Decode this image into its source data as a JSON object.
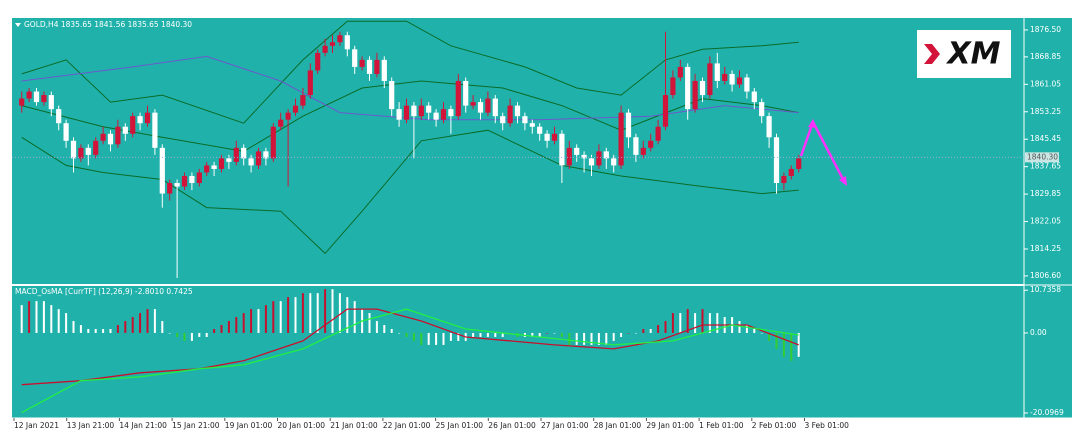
{
  "chart_data": [
    {
      "type": "candlestick",
      "title": "GOLD,H4  1835.65 1841.56 1835.65 1840.30",
      "logo": "XM",
      "up_color": "#d2143a",
      "down_color": "#ffffff",
      "ylim": [
        1804.3,
        1879.9
      ],
      "yticks": [
        {
          "value": 1876.5,
          "label": "1876.50"
        },
        1868.85,
        1861.05,
        1853.25,
        1845.45,
        1837.65,
        1829.85,
        1822.05,
        1814.25,
        {
          "value": 1806.6,
          "label": "1806.60"
        }
      ],
      "current_price": {
        "value": 1840.3,
        "label": "1840.30"
      },
      "categories": [
        "12 Jan 2021",
        "13 Jan 21:00",
        "14 Jan 21:00",
        "15 Jan 21:00",
        "19 Jan 01:00",
        "20 Jan 01:00",
        "21 Jan 01:00",
        "22 Jan 01:00",
        "25 Jan 01:00",
        "26 Jan 01:00",
        "27 Jan 01:00",
        "28 Jan 01:00",
        "29 Jan 01:00",
        "1 Feb 01:00",
        "2 Feb 01:00",
        "3 Feb 01:00"
      ],
      "candles": [
        [
          1855,
          1859,
          1853,
          1857
        ],
        [
          1857,
          1860,
          1856,
          1859
        ],
        [
          1859,
          1860,
          1855,
          1856
        ],
        [
          1856,
          1859,
          1855,
          1858
        ],
        [
          1858,
          1859,
          1852,
          1854
        ],
        [
          1854,
          1855,
          1848,
          1850
        ],
        [
          1850,
          1851,
          1843,
          1845
        ],
        [
          1845,
          1846,
          1836,
          1840
        ],
        [
          1840,
          1844,
          1839,
          1843
        ],
        [
          1843,
          1844,
          1838,
          1841
        ],
        [
          1841,
          1846,
          1840,
          1845
        ],
        [
          1845,
          1849,
          1844,
          1847
        ],
        [
          1847,
          1848,
          1842,
          1844
        ],
        [
          1844,
          1851,
          1843,
          1849
        ],
        [
          1849,
          1850,
          1845,
          1847
        ],
        [
          1847,
          1853,
          1846,
          1852
        ],
        [
          1852,
          1853,
          1848,
          1850
        ],
        [
          1850,
          1855,
          1849,
          1853
        ],
        [
          1853,
          1854,
          1841,
          1843
        ],
        [
          1843,
          1844,
          1826,
          1830
        ],
        [
          1830,
          1834,
          1828,
          1833
        ],
        [
          1833,
          1834,
          1806,
          1832
        ],
        [
          1832,
          1836,
          1831,
          1835
        ],
        [
          1835,
          1836,
          1831,
          1833
        ],
        [
          1833,
          1837,
          1832,
          1836
        ],
        [
          1836,
          1839,
          1835,
          1838
        ],
        [
          1838,
          1839,
          1835,
          1837
        ],
        [
          1837,
          1841,
          1836,
          1840
        ],
        [
          1840,
          1841,
          1837,
          1839
        ],
        [
          1839,
          1845,
          1838,
          1843
        ],
        [
          1843,
          1844,
          1838,
          1840
        ],
        [
          1840,
          1841,
          1836,
          1838
        ],
        [
          1838,
          1843,
          1837,
          1842
        ],
        [
          1842,
          1843,
          1838,
          1840
        ],
        [
          1840,
          1850,
          1839,
          1849
        ],
        [
          1849,
          1853,
          1848,
          1851
        ],
        [
          1851,
          1854,
          1832,
          1853
        ],
        [
          1853,
          1857,
          1852,
          1855
        ],
        [
          1855,
          1860,
          1854,
          1858
        ],
        [
          1858,
          1867,
          1857,
          1865
        ],
        [
          1865,
          1871,
          1864,
          1870
        ],
        [
          1870,
          1874,
          1869,
          1872
        ],
        [
          1872,
          1875,
          1870,
          1873
        ],
        [
          1873,
          1876,
          1872,
          1875
        ],
        [
          1875,
          1876,
          1869,
          1871
        ],
        [
          1871,
          1872,
          1864,
          1866
        ],
        [
          1866,
          1869,
          1865,
          1868
        ],
        [
          1868,
          1869,
          1862,
          1864
        ],
        [
          1864,
          1870,
          1863,
          1868
        ],
        [
          1868,
          1869,
          1860,
          1862
        ],
        [
          1862,
          1863,
          1852,
          1854
        ],
        [
          1854,
          1856,
          1849,
          1851
        ],
        [
          1851,
          1857,
          1850,
          1855
        ],
        [
          1855,
          1856,
          1840,
          1852
        ],
        [
          1852,
          1857,
          1851,
          1855
        ],
        [
          1855,
          1856,
          1851,
          1853
        ],
        [
          1853,
          1854,
          1849,
          1851
        ],
        [
          1851,
          1856,
          1850,
          1854
        ],
        [
          1854,
          1855,
          1847,
          1852
        ],
        [
          1852,
          1864,
          1851,
          1862
        ],
        [
          1862,
          1863,
          1853,
          1855
        ],
        [
          1855,
          1858,
          1854,
          1856
        ],
        [
          1856,
          1857,
          1851,
          1853
        ],
        [
          1853,
          1859,
          1852,
          1857
        ],
        [
          1857,
          1858,
          1850,
          1852
        ],
        [
          1852,
          1853,
          1848,
          1850
        ],
        [
          1850,
          1857,
          1849,
          1855
        ],
        [
          1855,
          1856,
          1850,
          1852
        ],
        [
          1852,
          1853,
          1848,
          1850
        ],
        [
          1850,
          1851,
          1847,
          1849
        ],
        [
          1849,
          1850,
          1845,
          1847
        ],
        [
          1847,
          1848,
          1843,
          1845
        ],
        [
          1845,
          1849,
          1844,
          1847
        ],
        [
          1847,
          1848,
          1833,
          1838
        ],
        [
          1838,
          1845,
          1837,
          1843
        ],
        [
          1843,
          1844,
          1839,
          1841
        ],
        [
          1841,
          1842,
          1836,
          1840
        ],
        [
          1840,
          1841,
          1835,
          1838
        ],
        [
          1838,
          1844,
          1837,
          1842
        ],
        [
          1842,
          1843,
          1837,
          1840
        ],
        [
          1840,
          1841,
          1836,
          1838
        ],
        [
          1838,
          1855,
          1837,
          1853
        ],
        [
          1853,
          1854,
          1843,
          1846
        ],
        [
          1846,
          1847,
          1839,
          1841
        ],
        [
          1841,
          1845,
          1840,
          1843
        ],
        [
          1843,
          1847,
          1842,
          1845
        ],
        [
          1845,
          1851,
          1844,
          1849
        ],
        [
          1849,
          1876,
          1848,
          1858
        ],
        [
          1858,
          1865,
          1857,
          1863
        ],
        [
          1863,
          1868,
          1862,
          1866
        ],
        [
          1866,
          1867,
          1851,
          1854
        ],
        [
          1854,
          1864,
          1853,
          1862
        ],
        [
          1862,
          1863,
          1856,
          1858
        ],
        [
          1858,
          1869,
          1857,
          1867
        ],
        [
          1867,
          1870,
          1860,
          1862
        ],
        [
          1862,
          1866,
          1861,
          1864
        ],
        [
          1864,
          1865,
          1859,
          1861
        ],
        [
          1861,
          1865,
          1860,
          1863
        ],
        [
          1863,
          1864,
          1857,
          1859
        ],
        [
          1859,
          1860,
          1854,
          1856
        ],
        [
          1856,
          1857,
          1850,
          1852
        ],
        [
          1852,
          1853,
          1843,
          1846
        ],
        [
          1846,
          1847,
          1830,
          1833
        ],
        [
          1833,
          1836,
          1831,
          1835
        ],
        [
          1835,
          1838,
          1834,
          1837
        ],
        [
          1837,
          1841,
          1836,
          1840
        ]
      ],
      "overlays": [
        {
          "color": "#0a6b28",
          "x": [
            0,
            6,
            12,
            19,
            30,
            38,
            44,
            52,
            58,
            68,
            75,
            81,
            87,
            92,
            100,
            105
          ],
          "values": [
            1864,
            1868,
            1856,
            1858,
            1850,
            1868,
            1879,
            1879,
            1872,
            1866,
            1860,
            1858,
            1868,
            1871,
            1872,
            1873
          ]
        },
        {
          "color": "#0a6b28",
          "x": [
            0,
            11,
            19,
            30,
            38,
            46,
            54,
            65,
            73,
            81,
            92,
            100,
            105
          ],
          "values": [
            1855,
            1849,
            1846,
            1842,
            1852,
            1860,
            1862,
            1860,
            1855,
            1848,
            1857,
            1855,
            1853
          ]
        },
        {
          "color": "#0a6b28",
          "x": [
            0,
            6,
            11,
            19,
            25,
            35,
            41,
            46,
            54,
            63,
            73,
            81,
            92,
            100,
            105
          ],
          "values": [
            1846,
            1838,
            1836,
            1834,
            1826,
            1825,
            1813,
            1825,
            1845,
            1848,
            1838,
            1835,
            1832,
            1830,
            1831
          ]
        },
        {
          "color": "#6a5acd",
          "x": [
            0,
            15,
            25,
            35,
            43,
            55,
            70,
            85,
            95,
            105
          ],
          "values": [
            1862,
            1866,
            1869,
            1862,
            1853,
            1851,
            1851,
            1852,
            1855,
            1853
          ]
        }
      ]
    },
    {
      "type": "histogram",
      "title": "MACD_OsMA [CurrTF] (12,26,9) -2.8010 0.7425",
      "colors": [
        "#c8102e",
        "#ffffff",
        "#32cd32"
      ],
      "ylim": [
        -21.36,
        11.8
      ],
      "yticks": [
        10.7358,
        {
          "value": 0,
          "label": "0.00"
        },
        -20.0969
      ],
      "values": [
        7,
        8,
        8,
        8,
        7,
        6,
        5,
        3,
        2,
        1,
        1,
        1,
        1,
        2,
        3,
        4,
        5,
        6,
        6,
        3,
        0,
        -1,
        -2,
        -2,
        -1,
        -1,
        1,
        2,
        3,
        4,
        5,
        6,
        6,
        7,
        8,
        8,
        9,
        9,
        10,
        10,
        10,
        11,
        11,
        10,
        9,
        8,
        6,
        5,
        3,
        2,
        1,
        0,
        -1,
        -2,
        -3,
        -3,
        -3,
        -3,
        -2,
        -2,
        -2,
        -1,
        -1,
        -1,
        -1,
        -1,
        0,
        -1,
        -1,
        -1,
        -1,
        0,
        0,
        -1,
        -3,
        -3,
        -3,
        -3,
        -3,
        -3,
        -2,
        -1,
        0,
        0,
        1,
        1,
        2,
        3,
        5,
        5,
        6,
        5,
        6,
        5,
        5,
        4,
        4,
        3,
        2,
        1,
        0,
        -2,
        -4,
        -6,
        -7,
        -6
      ],
      "lines": [
        {
          "color": "#c8102e",
          "x": [
            0,
            8,
            16,
            24,
            30,
            38,
            44,
            48,
            54,
            60,
            66,
            72,
            80,
            86,
            92,
            98,
            105
          ],
          "values": [
            -13,
            -12,
            -10,
            -9,
            -7,
            -2,
            6,
            6,
            3,
            -1,
            -2,
            -3,
            -4,
            -2,
            2,
            2,
            -3
          ]
        },
        {
          "color": "#22ee44",
          "x": [
            0,
            8,
            16,
            24,
            30,
            38,
            46,
            52,
            60,
            70,
            80,
            88,
            96,
            105
          ],
          "values": [
            -20,
            -12,
            -11,
            -9,
            -8,
            -4,
            3,
            6,
            1,
            -1,
            -3,
            -2,
            2,
            -0.5
          ]
        }
      ]
    }
  ]
}
